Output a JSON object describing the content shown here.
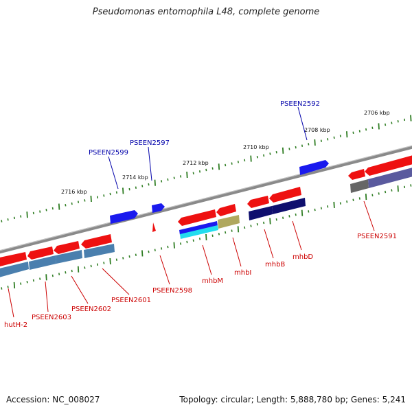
{
  "title": "Pseudomonas entomophila L48, complete genome",
  "footer": {
    "accession": "Accession: NC_008027",
    "summary": "Topology: circular; Length: 5,888,780 bp; Genes: 5,241"
  },
  "colors": {
    "backbone": "#8a8a8a",
    "tick": "#2f7d23",
    "forward_label": "#0000aa",
    "reverse_label": "#cc0000",
    "red_gene": "#ee1111",
    "blue_gene": "#1a1aee",
    "steelblue_cds": "#4a7fae",
    "navy_cds": "#0f0f6e",
    "cyan_cds": "#22ddee",
    "khaki_cds": "#b0a85e",
    "gray_cds": "#666666",
    "purple_cds": "#5a5a9e"
  },
  "scale_labels": [
    "2716 kbp",
    "2714 kbp",
    "2712 kbp",
    "2710 kbp",
    "2708 kbp",
    "2706 kbp"
  ],
  "forward_labels": [
    "PSEEN2599",
    "PSEEN2597",
    "PSEEN2592"
  ],
  "reverse_labels": [
    "hutH-2",
    "PSEEN2603",
    "PSEEN2602",
    "PSEEN2601",
    "PSEEN2598",
    "mhbM",
    "mhbI",
    "mhbB",
    "mhbD",
    "PSEEN2591"
  ]
}
